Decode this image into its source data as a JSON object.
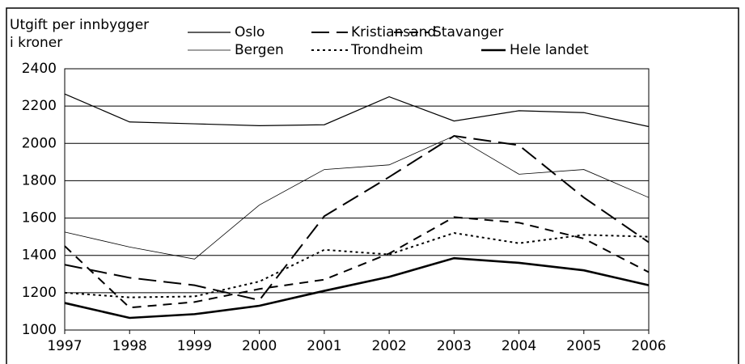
{
  "chart_data": {
    "type": "line",
    "y_label": [
      "Utgift per innbygger",
      "i kroner"
    ],
    "categories": [
      "1997",
      "1998",
      "1999",
      "2000",
      "2001",
      "2002",
      "2003",
      "2004",
      "2005",
      "2006"
    ],
    "series": [
      {
        "name": "Oslo",
        "color": "#000000",
        "style": "solid",
        "width": 1.2,
        "values": [
          2265,
          2115,
          2105,
          2095,
          2100,
          2250,
          2120,
          2175,
          2165,
          2090
        ]
      },
      {
        "name": "Bergen",
        "color": "#000000",
        "style": "solid",
        "width": 0.8,
        "values": [
          1525,
          1445,
          1380,
          1670,
          1860,
          1885,
          2040,
          1835,
          1860,
          1710
        ]
      },
      {
        "name": "Kristiansand",
        "color": "#000000",
        "style": "longdash",
        "width": 2,
        "values": [
          1350,
          1280,
          1240,
          1160,
          1610,
          1820,
          2040,
          1990,
          1710,
          1470
        ]
      },
      {
        "name": "Trondheim",
        "color": "#000000",
        "style": "dotted",
        "width": 2,
        "values": [
          1200,
          1175,
          1180,
          1260,
          1430,
          1405,
          1520,
          1465,
          1510,
          1500
        ]
      },
      {
        "name": "Stavanger",
        "color": "#000000",
        "style": "dashed",
        "width": 2,
        "values": [
          1450,
          1120,
          1150,
          1220,
          1270,
          1410,
          1605,
          1575,
          1490,
          1310
        ]
      },
      {
        "name": "Hele landet",
        "color": "#000000",
        "style": "solid",
        "width": 2.6,
        "values": [
          1145,
          1065,
          1085,
          1130,
          1210,
          1285,
          1385,
          1360,
          1320,
          1240
        ]
      }
    ],
    "ylim": [
      1000,
      2400
    ],
    "yticks": [
      1000,
      1200,
      1400,
      1600,
      1800,
      2000,
      2200,
      2400
    ],
    "grid": true
  }
}
